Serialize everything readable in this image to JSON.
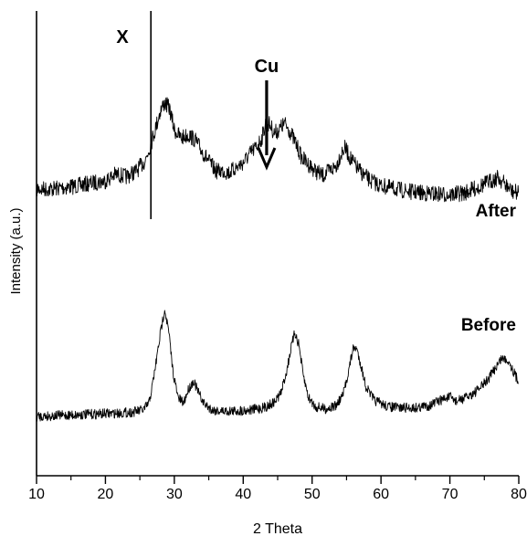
{
  "chart_data": {
    "type": "line",
    "xlabel": "2 Theta",
    "ylabel": "Intensity (a.u.)",
    "xlim": [
      10,
      80
    ],
    "x_ticks": [
      10,
      20,
      30,
      40,
      50,
      60,
      70,
      80
    ],
    "y_ticks_shown": false,
    "grid": false,
    "line_color": "#000000",
    "series": [
      {
        "name": "After",
        "label_position": "right",
        "x": [
          10,
          12,
          14,
          16,
          18,
          20,
          21.5,
          23,
          24.5,
          25.8,
          26.6,
          27.3,
          28.0,
          28.6,
          29.3,
          30.0,
          31.0,
          32.0,
          33.0,
          34.0,
          35.0,
          36.0,
          37.0,
          38.0,
          39.0,
          40.0,
          41.0,
          42.0,
          42.7,
          43.3,
          43.9,
          44.5,
          45.2,
          46.0,
          46.8,
          47.6,
          48.5,
          49.5,
          50.5,
          51.5,
          52.5,
          53.5,
          54.2,
          54.8,
          55.5,
          56.5,
          57.5,
          58.5,
          60,
          62,
          64,
          66,
          68,
          70,
          72,
          73.5,
          75,
          76,
          77,
          78,
          79,
          80
        ],
        "values": [
          100,
          100,
          102,
          104,
          107,
          110,
          118,
          115,
          122,
          135,
          155,
          175,
          196,
          205,
          198,
          172,
          162,
          166,
          160,
          146,
          134,
          122,
          122,
          120,
          126,
          132,
          143,
          152,
          162,
          182,
          178,
          168,
          172,
          180,
          170,
          156,
          138,
          130,
          122,
          116,
          122,
          128,
          143,
          150,
          138,
          126,
          117,
          110,
          104,
          100,
          97,
          95,
          94,
          93,
          95,
          100,
          106,
          110,
          114,
          106,
          97,
          95
        ]
      },
      {
        "name": "Before",
        "label_position": "right",
        "x": [
          10,
          14,
          18,
          22,
          24,
          25.5,
          26.3,
          26.8,
          27.4,
          28.0,
          28.6,
          29.2,
          29.8,
          30.5,
          31.3,
          32.1,
          32.8,
          33.5,
          34.3,
          35.5,
          37,
          39,
          41,
          43,
          44.5,
          45.5,
          46.3,
          46.9,
          47.5,
          48.1,
          48.7,
          49.5,
          50.5,
          52,
          53.5,
          54.5,
          55.3,
          55.9,
          56.4,
          57.0,
          57.8,
          59,
          61,
          63,
          65,
          67,
          69,
          70,
          71,
          72.5,
          74,
          75.5,
          76.5,
          77.5,
          78.5,
          79.5,
          80
        ],
        "values": [
          0,
          1,
          2,
          3,
          4,
          6,
          12,
          28,
          52,
          78,
          100,
          78,
          42,
          18,
          12,
          26,
          33,
          22,
          12,
          6,
          5,
          5,
          6,
          8,
          13,
          22,
          42,
          62,
          78,
          66,
          38,
          17,
          9,
          7,
          10,
          20,
          42,
          62,
          64,
          50,
          28,
          15,
          9,
          8,
          8,
          10,
          16,
          18,
          14,
          18,
          24,
          34,
          44,
          54,
          52,
          38,
          32
        ]
      }
    ],
    "annotations": [
      {
        "label": "X",
        "type": "vertical_line",
        "x": 26.6
      },
      {
        "label": "Cu",
        "type": "arrow",
        "x": 43.4
      }
    ]
  }
}
